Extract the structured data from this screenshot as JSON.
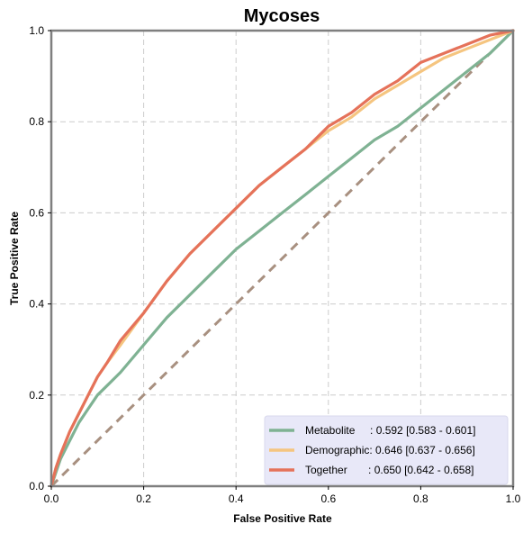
{
  "chart_data": {
    "type": "line",
    "title": "Mycoses",
    "xlabel": "False Positive Rate",
    "ylabel": "True Positive Rate",
    "xlim": [
      0,
      1
    ],
    "ylim": [
      0,
      1
    ],
    "xticks": [
      "0.0",
      "0.2",
      "0.4",
      "0.6",
      "0.8",
      "1.0"
    ],
    "yticks": [
      "0.0",
      "0.2",
      "0.4",
      "0.6",
      "0.8",
      "1.0"
    ],
    "grid": true,
    "legend_position": "bottom-right",
    "series": [
      {
        "name": "Metabolite",
        "label": "Metabolite     : 0.592 [0.583 - 0.601]",
        "color": "#7fb293",
        "x": [
          0,
          0.01,
          0.02,
          0.04,
          0.06,
          0.08,
          0.1,
          0.12,
          0.15,
          0.2,
          0.25,
          0.3,
          0.35,
          0.4,
          0.45,
          0.5,
          0.55,
          0.6,
          0.65,
          0.7,
          0.75,
          0.8,
          0.85,
          0.9,
          0.95,
          1.0
        ],
        "y": [
          0,
          0.03,
          0.06,
          0.1,
          0.14,
          0.17,
          0.2,
          0.22,
          0.25,
          0.31,
          0.37,
          0.42,
          0.47,
          0.52,
          0.56,
          0.6,
          0.64,
          0.68,
          0.72,
          0.76,
          0.79,
          0.83,
          0.87,
          0.91,
          0.95,
          1.0
        ]
      },
      {
        "name": "Demographic",
        "label": "Demographic: 0.646 [0.637 - 0.656]",
        "color": "#f5c580",
        "x": [
          0,
          0.01,
          0.02,
          0.04,
          0.06,
          0.08,
          0.1,
          0.12,
          0.15,
          0.2,
          0.25,
          0.3,
          0.35,
          0.4,
          0.45,
          0.5,
          0.55,
          0.6,
          0.65,
          0.7,
          0.75,
          0.8,
          0.85,
          0.9,
          0.95,
          1.0
        ],
        "y": [
          0,
          0.04,
          0.07,
          0.12,
          0.16,
          0.2,
          0.24,
          0.27,
          0.31,
          0.38,
          0.45,
          0.51,
          0.56,
          0.61,
          0.66,
          0.7,
          0.74,
          0.78,
          0.81,
          0.85,
          0.88,
          0.91,
          0.94,
          0.96,
          0.98,
          1.0
        ]
      },
      {
        "name": "Together",
        "label": "Together       : 0.650 [0.642 - 0.658]",
        "color": "#e5725a",
        "x": [
          0,
          0.01,
          0.02,
          0.04,
          0.06,
          0.08,
          0.1,
          0.12,
          0.15,
          0.2,
          0.25,
          0.3,
          0.35,
          0.4,
          0.45,
          0.5,
          0.55,
          0.6,
          0.65,
          0.7,
          0.75,
          0.8,
          0.85,
          0.9,
          0.95,
          1.0
        ],
        "y": [
          0,
          0.04,
          0.07,
          0.12,
          0.16,
          0.2,
          0.24,
          0.27,
          0.32,
          0.38,
          0.45,
          0.51,
          0.56,
          0.61,
          0.66,
          0.7,
          0.74,
          0.79,
          0.82,
          0.86,
          0.89,
          0.93,
          0.95,
          0.97,
          0.99,
          1.0
        ]
      },
      {
        "name": "Chance",
        "color": "#a89080",
        "dashed": true,
        "x": [
          0,
          1
        ],
        "y": [
          0,
          1
        ]
      }
    ]
  }
}
